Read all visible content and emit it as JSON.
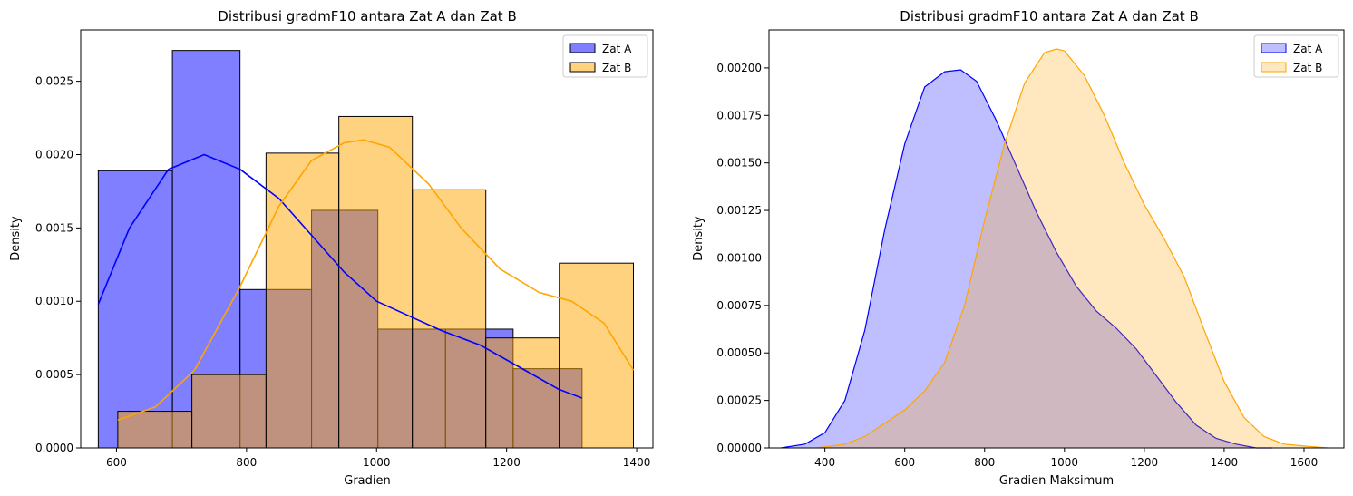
{
  "chart_data": [
    {
      "type": "histogram",
      "title": "Distribusi gradmF10 antara Zat A dan Zat B",
      "xlabel": "Gradien",
      "ylabel": "Density",
      "xlim": [
        545,
        1425
      ],
      "ylim": [
        0,
        0.00285
      ],
      "xticks": [
        600,
        800,
        1000,
        1200,
        1400
      ],
      "yticks": [
        0.0,
        0.0005,
        0.001,
        0.0015,
        0.002,
        0.0025
      ],
      "ytick_labels": [
        "0.0000",
        "0.0005",
        "0.0010",
        "0.0015",
        "0.0020",
        "0.0025"
      ],
      "legend_position": "top-right",
      "series": [
        {
          "name": "Zat A",
          "color": "#0000ff",
          "bins": [
            {
              "x0": 572,
              "x1": 686,
              "density": 0.00189
            },
            {
              "x0": 686,
              "x1": 790,
              "density": 0.00271
            },
            {
              "x0": 790,
              "x1": 900,
              "density": 0.00108
            },
            {
              "x0": 900,
              "x1": 1002,
              "density": 0.00162
            },
            {
              "x0": 1002,
              "x1": 1106,
              "density": 0.00081
            },
            {
              "x0": 1106,
              "x1": 1210,
              "density": 0.00081
            },
            {
              "x0": 1210,
              "x1": 1316,
              "density": 0.00054
            }
          ],
          "kde": [
            [
              572,
              0.00098
            ],
            [
              620,
              0.0015
            ],
            [
              680,
              0.0019
            ],
            [
              735,
              0.002
            ],
            [
              790,
              0.0019
            ],
            [
              850,
              0.0017
            ],
            [
              900,
              0.00145
            ],
            [
              950,
              0.0012
            ],
            [
              1000,
              0.001
            ],
            [
              1060,
              0.00088
            ],
            [
              1100,
              0.0008
            ],
            [
              1160,
              0.0007
            ],
            [
              1220,
              0.00055
            ],
            [
              1280,
              0.0004
            ],
            [
              1316,
              0.00034
            ]
          ]
        },
        {
          "name": "Zat B",
          "color": "#ffa500",
          "bins": [
            {
              "x0": 602,
              "x1": 716,
              "density": 0.00025
            },
            {
              "x0": 716,
              "x1": 830,
              "density": 0.0005
            },
            {
              "x0": 830,
              "x1": 942,
              "density": 0.00201
            },
            {
              "x0": 942,
              "x1": 1055,
              "density": 0.00226
            },
            {
              "x0": 1055,
              "x1": 1168,
              "density": 0.00176
            },
            {
              "x0": 1168,
              "x1": 1281,
              "density": 0.00075
            },
            {
              "x0": 1281,
              "x1": 1395,
              "density": 0.00126
            }
          ],
          "kde": [
            [
              602,
              0.00019
            ],
            [
              660,
              0.00028
            ],
            [
              720,
              0.00053
            ],
            [
              790,
              0.0011
            ],
            [
              850,
              0.00165
            ],
            [
              900,
              0.00196
            ],
            [
              950,
              0.00208
            ],
            [
              980,
              0.0021
            ],
            [
              1020,
              0.00205
            ],
            [
              1080,
              0.0018
            ],
            [
              1130,
              0.0015
            ],
            [
              1190,
              0.00122
            ],
            [
              1250,
              0.00106
            ],
            [
              1300,
              0.001
            ],
            [
              1350,
              0.00085
            ],
            [
              1395,
              0.00053
            ]
          ]
        }
      ]
    },
    {
      "type": "area",
      "title": "Distribusi gradmF10 antara Zat A dan Zat B",
      "xlabel": "Gradien Maksimum",
      "ylabel": "Density",
      "xlim": [
        260,
        1700
      ],
      "ylim": [
        0,
        0.0022
      ],
      "xticks": [
        400,
        600,
        800,
        1000,
        1200,
        1400,
        1600
      ],
      "yticks": [
        0.0,
        0.00025,
        0.0005,
        0.00075,
        0.001,
        0.00125,
        0.0015,
        0.00175,
        0.002
      ],
      "ytick_labels": [
        "0.00000",
        "0.00025",
        "0.00050",
        "0.00075",
        "0.00100",
        "0.00125",
        "0.00150",
        "0.00175",
        "0.00200"
      ],
      "legend_position": "top-right",
      "series": [
        {
          "name": "Zat A",
          "color": "#0000ff",
          "x": [
            290,
            350,
            400,
            450,
            500,
            550,
            600,
            650,
            700,
            740,
            780,
            830,
            880,
            930,
            980,
            1030,
            1080,
            1130,
            1180,
            1230,
            1280,
            1330,
            1380,
            1430,
            1480,
            1520
          ],
          "y": [
            0.0,
            2e-05,
            8e-05,
            0.00025,
            0.00062,
            0.00115,
            0.0016,
            0.0019,
            0.00198,
            0.00199,
            0.00193,
            0.00172,
            0.00148,
            0.00124,
            0.00103,
            0.00085,
            0.00072,
            0.00063,
            0.00052,
            0.00038,
            0.00024,
            0.00012,
            5e-05,
            2e-05,
            0.0,
            0.0
          ]
        },
        {
          "name": "Zat B",
          "color": "#ffa500",
          "x": [
            380,
            450,
            500,
            550,
            600,
            650,
            700,
            750,
            800,
            850,
            900,
            950,
            980,
            1000,
            1050,
            1100,
            1150,
            1200,
            1250,
            1300,
            1350,
            1400,
            1450,
            1500,
            1550,
            1600,
            1660
          ],
          "y": [
            0.0,
            2e-05,
            6e-05,
            0.00013,
            0.0002,
            0.0003,
            0.00045,
            0.00075,
            0.0012,
            0.0016,
            0.00192,
            0.00208,
            0.0021,
            0.00209,
            0.00196,
            0.00175,
            0.0015,
            0.00128,
            0.0011,
            0.0009,
            0.00062,
            0.00035,
            0.00016,
            6e-05,
            2e-05,
            1e-05,
            0.0
          ]
        }
      ]
    }
  ]
}
